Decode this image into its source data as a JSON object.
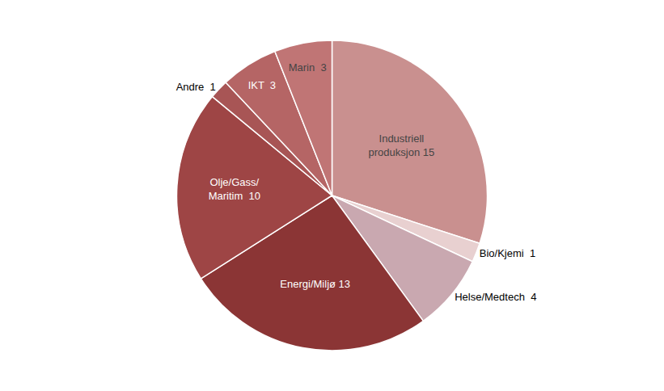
{
  "chart_data": {
    "type": "pie",
    "categories": [
      "Industriell\nproduksjon 15",
      "Bio/Kjemi  1",
      "Helse/Medtech  4",
      "Energi/Miljø 13",
      "Olje/Gass/\nMaritim  10",
      "Andre  1",
      "IKT  3",
      "Marin  3"
    ],
    "values": [
      15,
      1,
      4,
      13,
      10,
      1,
      3,
      3
    ],
    "colors": [
      "#c9908f",
      "#e8d0d0",
      "#c9a8b0",
      "#8b3535",
      "#9e4545",
      "#a85555",
      "#b56565",
      "#c07575"
    ],
    "legend": false
  }
}
